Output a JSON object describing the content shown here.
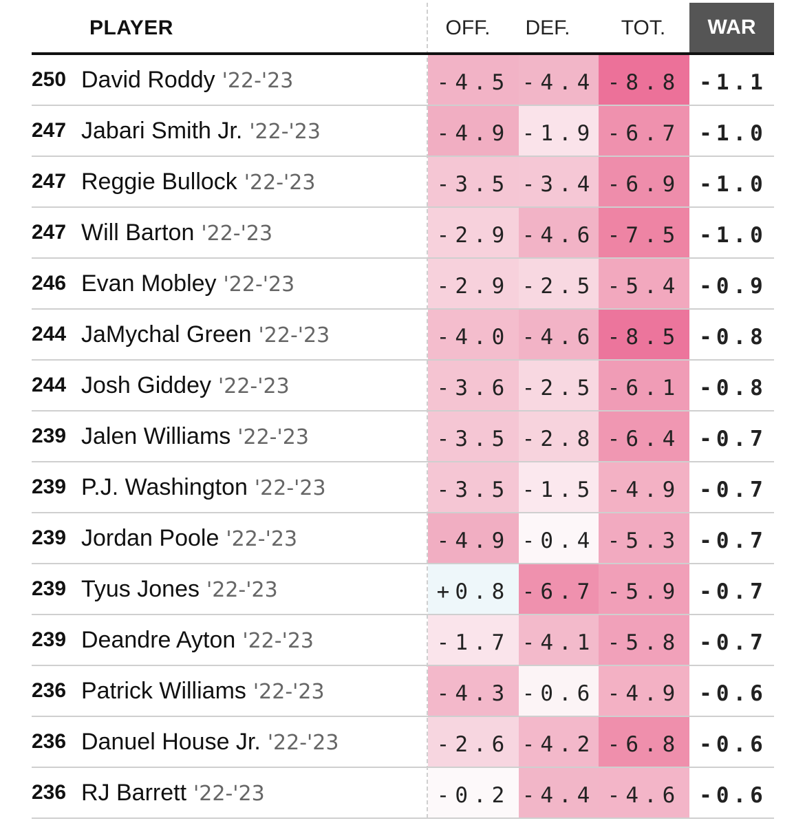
{
  "header": {
    "player": "PLAYER",
    "off": "OFF.",
    "def": "DEF.",
    "tot": "TOT.",
    "war": "WAR"
  },
  "rows": [
    {
      "rank": "250",
      "name": "David Roddy",
      "season": "'22-'23",
      "off": "-4.5",
      "def": "-4.4",
      "tot": "-8.8",
      "war": "-1.1",
      "off_c": "#f2b3c6",
      "def_c": "#f2b6c8",
      "tot_c": "#ec7199"
    },
    {
      "rank": "247",
      "name": "Jabari Smith Jr.",
      "season": "'22-'23",
      "off": "-4.9",
      "def": "-1.9",
      "tot": "-6.7",
      "war": "-1.0",
      "off_c": "#f1aec2",
      "def_c": "#fae3ea",
      "tot_c": "#ef91ae"
    },
    {
      "rank": "247",
      "name": "Reggie Bullock",
      "season": "'22-'23",
      "off": "-3.5",
      "def": "-3.4",
      "tot": "-6.9",
      "war": "-1.0",
      "off_c": "#f5c6d4",
      "def_c": "#f5c7d5",
      "tot_c": "#ee8dab"
    },
    {
      "rank": "247",
      "name": "Will Barton",
      "season": "'22-'23",
      "off": "-2.9",
      "def": "-4.6",
      "tot": "-7.5",
      "war": "-1.0",
      "off_c": "#f7d1dc",
      "def_c": "#f2b3c6",
      "tot_c": "#ee84a4"
    },
    {
      "rank": "246",
      "name": "Evan Mobley",
      "season": "'22-'23",
      "off": "-2.9",
      "def": "-2.5",
      "tot": "-5.4",
      "war": "-0.9",
      "off_c": "#f7d1dc",
      "def_c": "#f8d8e1",
      "tot_c": "#f2a8be"
    },
    {
      "rank": "244",
      "name": "JaMychal Green",
      "season": "'22-'23",
      "off": "-4.0",
      "def": "-4.6",
      "tot": "-8.5",
      "war": "-0.8",
      "off_c": "#f4bdcd",
      "def_c": "#f2b3c6",
      "tot_c": "#ec759c"
    },
    {
      "rank": "244",
      "name": "Josh Giddey",
      "season": "'22-'23",
      "off": "-3.6",
      "def": "-2.5",
      "tot": "-6.1",
      "war": "-0.8",
      "off_c": "#f5c4d2",
      "def_c": "#f8d8e1",
      "tot_c": "#f09cb6"
    },
    {
      "rank": "239",
      "name": "Jalen Williams",
      "season": "'22-'23",
      "off": "-3.5",
      "def": "-2.8",
      "tot": "-6.4",
      "war": "-0.7",
      "off_c": "#f5c6d4",
      "def_c": "#f7d3dd",
      "tot_c": "#f097b2"
    },
    {
      "rank": "239",
      "name": "P.J. Washington",
      "season": "'22-'23",
      "off": "-3.5",
      "def": "-1.5",
      "tot": "-4.9",
      "war": "-0.7",
      "off_c": "#f5c6d4",
      "def_c": "#fbe8ee",
      "tot_c": "#f3b1c4"
    },
    {
      "rank": "239",
      "name": "Jordan Poole",
      "season": "'22-'23",
      "off": "-4.9",
      "def": "-0.4",
      "tot": "-5.3",
      "war": "-0.7",
      "off_c": "#f1aec2",
      "def_c": "#fdf7f9",
      "tot_c": "#f2aac0"
    },
    {
      "rank": "239",
      "name": "Tyus Jones",
      "season": "'22-'23",
      "off": "+0.8",
      "def": "-6.7",
      "tot": "-5.9",
      "war": "-0.7",
      "off_c": "#eef7fa",
      "def_c": "#ef91ae",
      "tot_c": "#f19fb8"
    },
    {
      "rank": "239",
      "name": "Deandre Ayton",
      "season": "'22-'23",
      "off": "-1.7",
      "def": "-4.1",
      "tot": "-5.8",
      "war": "-0.7",
      "off_c": "#fae4eb",
      "def_c": "#f3bacb",
      "tot_c": "#f1a1ba"
    },
    {
      "rank": "236",
      "name": "Patrick Williams",
      "season": "'22-'23",
      "off": "-4.3",
      "def": "-0.6",
      "tot": "-4.9",
      "war": "-0.6",
      "off_c": "#f3b8ca",
      "def_c": "#fcf4f6",
      "tot_c": "#f3b1c4"
    },
    {
      "rank": "236",
      "name": "Danuel House Jr.",
      "season": "'22-'23",
      "off": "-2.6",
      "def": "-4.2",
      "tot": "-6.8",
      "war": "-0.6",
      "off_c": "#f7d6e0",
      "def_c": "#f3b8ca",
      "tot_c": "#ef8fac"
    },
    {
      "rank": "236",
      "name": "RJ Barrett",
      "season": "'22-'23",
      "off": "-0.2",
      "def": "-4.4",
      "tot": "-4.6",
      "war": "-0.6",
      "off_c": "#fdf9fa",
      "def_c": "#f2b6c8",
      "tot_c": "#f3b5c8"
    }
  ]
}
